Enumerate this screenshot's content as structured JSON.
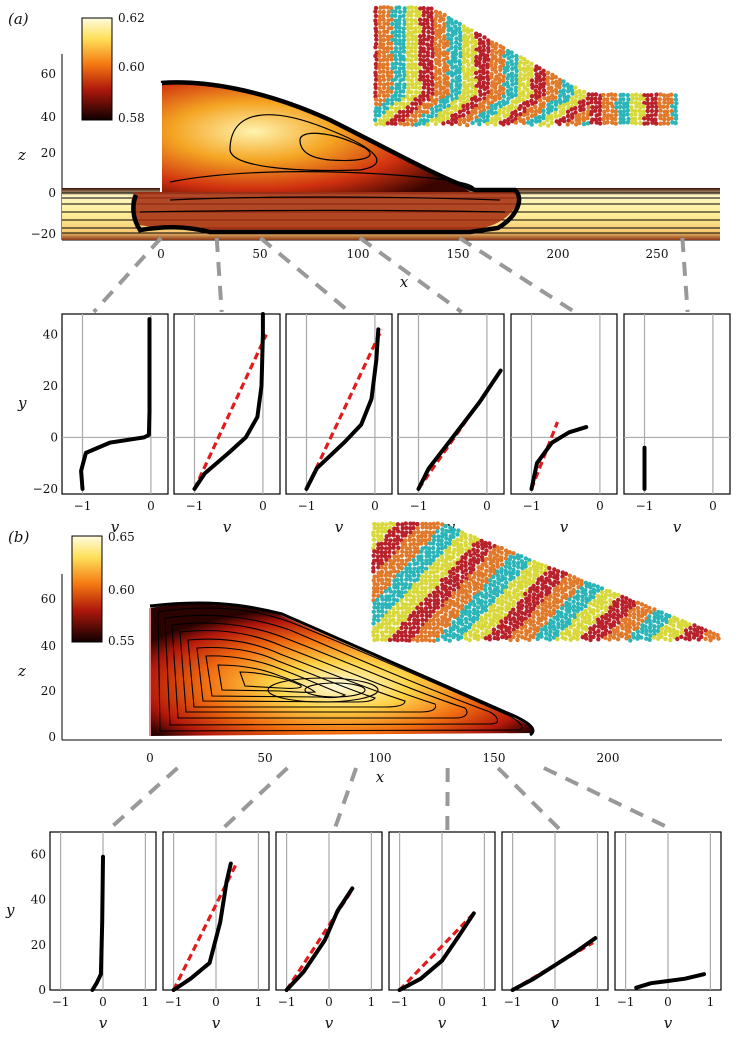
{
  "panel_a": {
    "label": "(a)",
    "colorbar_ticks": [
      "0.62",
      "0.60",
      "0.58"
    ],
    "xlabel": "x",
    "ylabel": "z",
    "x_ticks": [
      "0",
      "50",
      "100",
      "150",
      "200",
      "250"
    ],
    "y_ticks": [
      "60",
      "40",
      "20",
      "0",
      "−20"
    ],
    "profile_xlabel": "v",
    "profile_ylabel": "y",
    "profile_x_ticks": [
      "−1",
      "0"
    ],
    "profile_y_ticks": [
      "40",
      "20",
      "0",
      "−20"
    ]
  },
  "panel_b": {
    "label": "(b)",
    "colorbar_ticks": [
      "0.65",
      "0.60",
      "0.55"
    ],
    "xlabel": "x",
    "ylabel": "z",
    "x_ticks": [
      "0",
      "50",
      "100",
      "150",
      "200"
    ],
    "y_ticks": [
      "60",
      "40",
      "20",
      "0"
    ],
    "profile_xlabel": "v",
    "profile_ylabel": "y",
    "profile_x_ticks": [
      "−1",
      "0",
      "1"
    ],
    "profile_y_ticks": [
      "60",
      "40",
      "20",
      "0"
    ]
  },
  "colors": {
    "profile_line": "#000000",
    "fit_line": "#e31a1c",
    "guide": "#999999",
    "grain_palette": [
      "#2bb5b8",
      "#d8d83a",
      "#b8202a",
      "#e07a2a"
    ]
  },
  "chart_data": [
    {
      "type": "heatmap",
      "title": "",
      "xlabel": "x",
      "ylabel": "z",
      "xlim": [
        -45,
        285
      ],
      "ylim": [
        -24,
        68
      ],
      "colorbar": {
        "min": 0.58,
        "max": 0.62,
        "ticks": [
          0.62,
          0.6,
          0.58
        ]
      },
      "pile_outline": [
        [
          0,
          55
        ],
        [
          5,
          56
        ],
        [
          30,
          54
        ],
        [
          60,
          48
        ],
        [
          100,
          35
        ],
        [
          130,
          22
        ],
        [
          150,
          10
        ],
        [
          170,
          2
        ],
        [
          180,
          0
        ],
        [
          178,
          -10
        ],
        [
          165,
          -19
        ],
        [
          100,
          -20
        ],
        [
          20,
          -18
        ],
        [
          0,
          -19
        ],
        [
          -10,
          -18
        ],
        [
          -12,
          -12
        ],
        [
          -14,
          -5
        ],
        [
          0,
          0
        ]
      ],
      "sample_x": [
        0,
        28,
        50,
        100,
        150,
        262
      ],
      "profiles": [
        {
          "x": 0,
          "v": [
            -1,
            -1.02,
            -0.95,
            -0.6,
            -0.1,
            -0.03,
            -0.02,
            -0.02,
            -0.02
          ],
          "y": [
            -20,
            -13,
            -6,
            -2,
            0,
            1,
            10,
            30,
            46
          ],
          "fit": null
        },
        {
          "x": 28,
          "v": [
            -1,
            -0.85,
            -0.5,
            -0.25,
            -0.08,
            -0.02,
            0,
            0
          ],
          "y": [
            -20,
            -14,
            -6,
            0,
            8,
            20,
            40,
            48
          ],
          "fit": {
            "v": [
              -1,
              0.05
            ],
            "y": [
              -20,
              40
            ]
          }
        },
        {
          "x": 50,
          "v": [
            -1,
            -0.85,
            -0.45,
            -0.2,
            -0.05,
            0.02,
            0.05
          ],
          "y": [
            -20,
            -12,
            -2,
            5,
            15,
            30,
            42
          ],
          "fit": {
            "v": [
              -1,
              0.1
            ],
            "y": [
              -20,
              42
            ]
          }
        },
        {
          "x": 100,
          "v": [
            -1,
            -0.85,
            -0.5,
            -0.1,
            0.2
          ],
          "y": [
            -20,
            -12,
            0,
            14,
            26
          ],
          "fit": {
            "v": [
              -1,
              0.05
            ],
            "y": [
              -20,
              20
            ]
          }
        },
        {
          "x": 150,
          "v": [
            -1,
            -0.92,
            -0.7,
            -0.45,
            -0.2
          ],
          "y": [
            -20,
            -10,
            -2,
            2,
            4
          ],
          "fit": {
            "v": [
              -1,
              -0.62
            ],
            "y": [
              -20,
              6
            ]
          }
        },
        {
          "x": 262,
          "v": [
            -1,
            -1
          ],
          "y": [
            -20,
            -4
          ],
          "fit": null
        }
      ]
    },
    {
      "type": "heatmap",
      "title": "",
      "xlabel": "x",
      "ylabel": "z",
      "xlim": [
        -40,
        245
      ],
      "ylim": [
        -2,
        70
      ],
      "colorbar": {
        "min": 0.55,
        "max": 0.65,
        "ticks": [
          0.65,
          0.6,
          0.55
        ]
      },
      "pile_outline": [
        [
          0,
          56
        ],
        [
          20,
          57
        ],
        [
          40,
          55
        ],
        [
          70,
          45
        ],
        [
          100,
          32
        ],
        [
          130,
          18
        ],
        [
          150,
          8
        ],
        [
          165,
          1
        ],
        [
          160,
          0
        ],
        [
          0,
          0
        ]
      ],
      "sample_x": [
        12,
        60,
        90,
        130,
        152,
        172
      ],
      "profiles": [
        {
          "x": 12,
          "v": [
            -0.25,
            -0.15,
            -0.05,
            -0.02,
            0
          ],
          "y": [
            0,
            3,
            7,
            30,
            59
          ],
          "fit": null
        },
        {
          "x": 60,
          "v": [
            -1,
            -0.6,
            -0.15,
            0.1,
            0.25,
            0.35
          ],
          "y": [
            0,
            5,
            12,
            30,
            48,
            56
          ],
          "fit": {
            "v": [
              -1,
              0.48
            ],
            "y": [
              0,
              56
            ]
          }
        },
        {
          "x": 90,
          "v": [
            -1,
            -0.6,
            -0.1,
            0.2,
            0.55
          ],
          "y": [
            0,
            8,
            22,
            35,
            45
          ],
          "fit": {
            "v": [
              -1,
              0.5
            ],
            "y": [
              0,
              43
            ]
          }
        },
        {
          "x": 130,
          "v": [
            -1,
            -0.5,
            0,
            0.4,
            0.75
          ],
          "y": [
            0,
            5,
            13,
            24,
            34
          ],
          "fit": {
            "v": [
              -1,
              0.75
            ],
            "y": [
              0,
              34
            ]
          }
        },
        {
          "x": 152,
          "v": [
            -1,
            -0.5,
            0,
            0.5,
            0.95
          ],
          "y": [
            0,
            5,
            11,
            17,
            23
          ],
          "fit": {
            "v": [
              -1,
              0.9
            ],
            "y": [
              0,
              21
            ]
          }
        },
        {
          "x": 172,
          "v": [
            -0.75,
            -0.4,
            0,
            0.4,
            0.85
          ],
          "y": [
            1,
            3,
            4,
            5,
            7
          ],
          "fit": null
        }
      ]
    }
  ]
}
